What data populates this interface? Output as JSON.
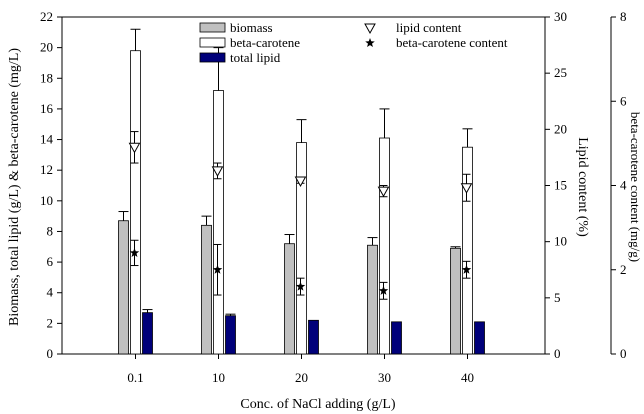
{
  "chart_data": {
    "type": "bar",
    "xlabel": "Conc. of NaCl adding (g/L)",
    "ylabel_left": "Biomass, total lipid (g/L) & beta-carotene (mg/L)",
    "ylabel_right1": "Lipid content (%)",
    "ylabel_right2": "beta-carotene content (mg/g)",
    "categories": [
      "0.1",
      "10",
      "20",
      "30",
      "40"
    ],
    "ylim_left": [
      0,
      22
    ],
    "ylim_right1": [
      0,
      30
    ],
    "ylim_right2": [
      0,
      8
    ],
    "yticks_left": [
      "0",
      "2",
      "4",
      "6",
      "8",
      "10",
      "12",
      "14",
      "16",
      "18",
      "20",
      "22"
    ],
    "yticks_right1": [
      "0",
      "5",
      "10",
      "15",
      "20",
      "25",
      "30"
    ],
    "yticks_right2": [
      "0",
      "2",
      "4",
      "6",
      "8"
    ],
    "bar_series": [
      {
        "name": "biomass",
        "color": "#c0c0c0",
        "values": [
          8.7,
          8.4,
          7.2,
          7.1,
          6.9
        ],
        "errors": [
          0.6,
          0.6,
          0.6,
          0.5,
          0.1
        ]
      },
      {
        "name": "beta-carotene",
        "color": "#ffffff",
        "values": [
          19.8,
          17.2,
          13.8,
          14.1,
          13.5
        ],
        "errors": [
          1.4,
          2.8,
          1.5,
          1.9,
          1.2
        ]
      },
      {
        "name": "total lipid",
        "color": "#00007a",
        "values": [
          2.7,
          2.5,
          2.2,
          2.1,
          2.1
        ],
        "errors": [
          0.2,
          0.1,
          0.0,
          0.0,
          0.0
        ]
      }
    ],
    "point_series": [
      {
        "name": "lipid content",
        "marker": "triangle-down-open",
        "axis": "right1",
        "values": [
          18.4,
          16.3,
          15.4,
          14.5,
          14.8
        ],
        "errors": [
          1.4,
          0.7,
          0.2,
          0.5,
          1.2
        ]
      },
      {
        "name": "beta-carotene content",
        "marker": "star",
        "axis": "right2",
        "values": [
          2.4,
          2.0,
          1.6,
          1.5,
          2.0
        ],
        "errors": [
          0.3,
          0.6,
          0.2,
          0.2,
          0.2
        ]
      }
    ]
  }
}
